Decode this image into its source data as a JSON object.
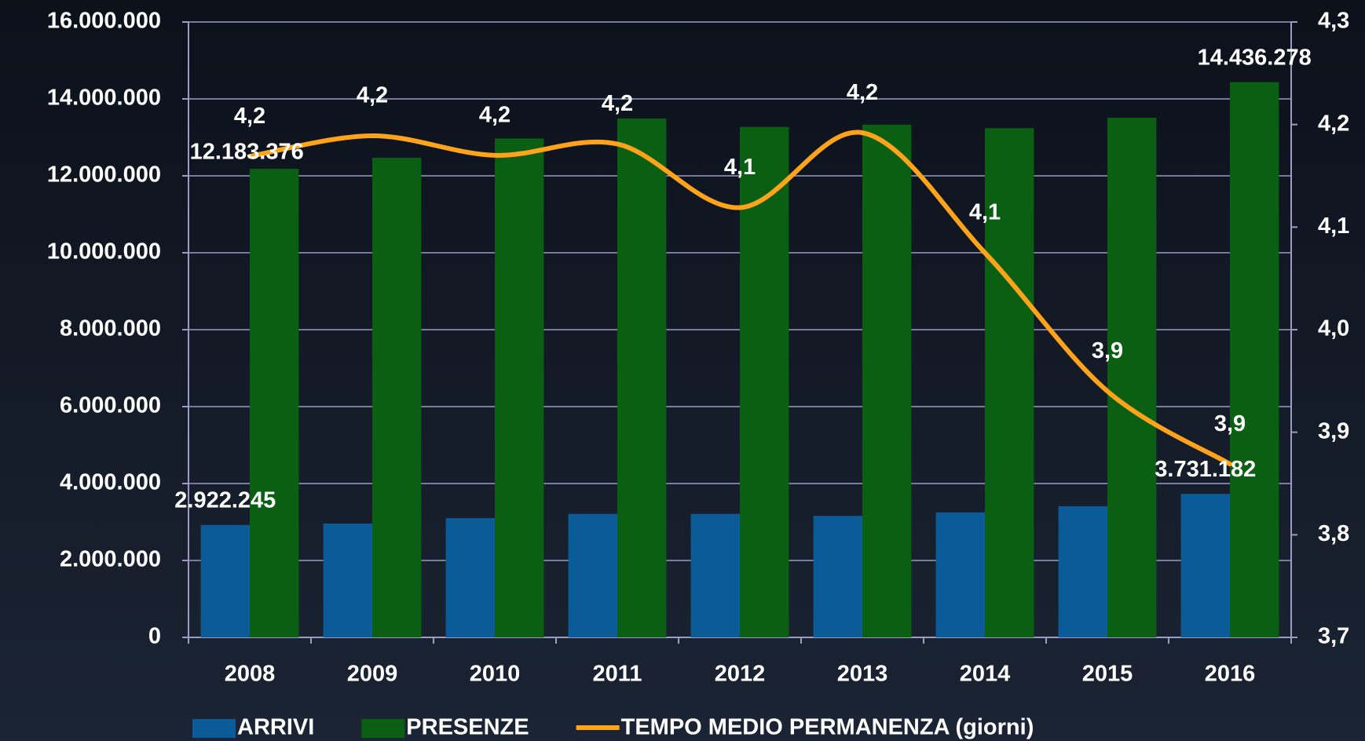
{
  "chart_data": {
    "type": "bar",
    "categories": [
      "2008",
      "2009",
      "2010",
      "2011",
      "2012",
      "2013",
      "2014",
      "2015",
      "2016"
    ],
    "series": [
      {
        "name": "ARRIVI",
        "color": "#0b5b98",
        "values": [
          2922245,
          2960000,
          3100000,
          3210000,
          3210000,
          3160000,
          3250000,
          3410000,
          3731182
        ],
        "value_labels": [
          "2.922.245",
          null,
          null,
          null,
          null,
          null,
          null,
          null,
          "3.731.182"
        ]
      },
      {
        "name": "PRESENZE",
        "color": "#0a5f12",
        "values": [
          12183376,
          12470000,
          12970000,
          13490000,
          13270000,
          13330000,
          13240000,
          13510000,
          14436278
        ],
        "value_labels": [
          "12.183.376",
          null,
          null,
          null,
          null,
          null,
          null,
          null,
          "14.436.278"
        ]
      },
      {
        "name": "TEMPO MEDIO PERMANENZA (giorni)",
        "type": "line",
        "axis": "y2",
        "color": "#ffa41a",
        "values": [
          4.169,
          4.189,
          4.17,
          4.181,
          4.119,
          4.192,
          4.075,
          3.94,
          3.869
        ],
        "value_labels": [
          "4,2",
          "4,2",
          "4,2",
          "4,2",
          "4,1",
          "4,2",
          "4,1",
          "3,9",
          "3,9"
        ]
      }
    ],
    "ylim": [
      0,
      16000000
    ],
    "yticks": [
      0,
      {
        "value": 2000000,
        "label": "2.000.000"
      },
      {
        "value": 4000000,
        "label": "4.000.000"
      },
      {
        "value": 6000000,
        "label": "6.000.000"
      },
      {
        "value": 8000000,
        "label": "8.000.000"
      },
      {
        "value": 10000000,
        "label": "10.000.000"
      },
      {
        "value": 12000000,
        "label": "12.000.000"
      },
      {
        "value": 14000000,
        "label": "14.000.000"
      },
      {
        "value": 16000000,
        "label": "16.000.000"
      }
    ],
    "y2lim": [
      3.7,
      4.3
    ],
    "y2ticks": [
      {
        "value": 3.7,
        "label": "3,7"
      },
      {
        "value": 3.8,
        "label": "3,8"
      },
      {
        "value": 3.9,
        "label": "3,9"
      },
      {
        "value": 4.0,
        "label": "4,0"
      },
      {
        "value": 4.1,
        "label": "4,1"
      },
      {
        "value": 4.2,
        "label": "4,2"
      },
      {
        "value": 4.3,
        "label": "4,3"
      }
    ],
    "grid": true,
    "legend": "bottom"
  }
}
